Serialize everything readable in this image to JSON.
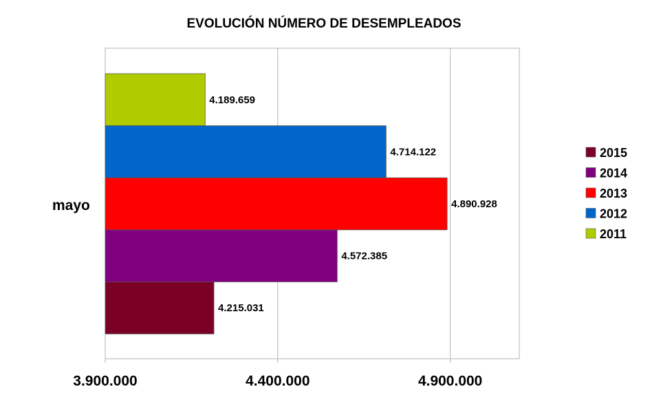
{
  "chart_data": {
    "type": "bar",
    "orientation": "horizontal",
    "title": "EVOLUCIÓN NÚMERO DE DESEMPLEADOS",
    "categories": [
      "mayo"
    ],
    "series": [
      {
        "name": "2015",
        "values": [
          4215031
        ],
        "label": "4.215.031",
        "color": "#7b0026"
      },
      {
        "name": "2014",
        "values": [
          4572385
        ],
        "label": "4.572.385",
        "color": "#800080"
      },
      {
        "name": "2013",
        "values": [
          4890928
        ],
        "label": "4.890.928",
        "color": "#ff0000"
      },
      {
        "name": "2012",
        "values": [
          4714122
        ],
        "label": "4.714.122",
        "color": "#0066cc"
      },
      {
        "name": "2011",
        "values": [
          4189659
        ],
        "label": "4.189.659",
        "color": "#b0cc00"
      }
    ],
    "xlim": [
      3900000,
      5100000
    ],
    "x_ticks": [
      {
        "value": 3900000,
        "label": "3.900.000"
      },
      {
        "value": 4400000,
        "label": "4.400.000"
      },
      {
        "value": 4900000,
        "label": "4.900.000"
      }
    ],
    "grid": true,
    "legend": "right"
  }
}
